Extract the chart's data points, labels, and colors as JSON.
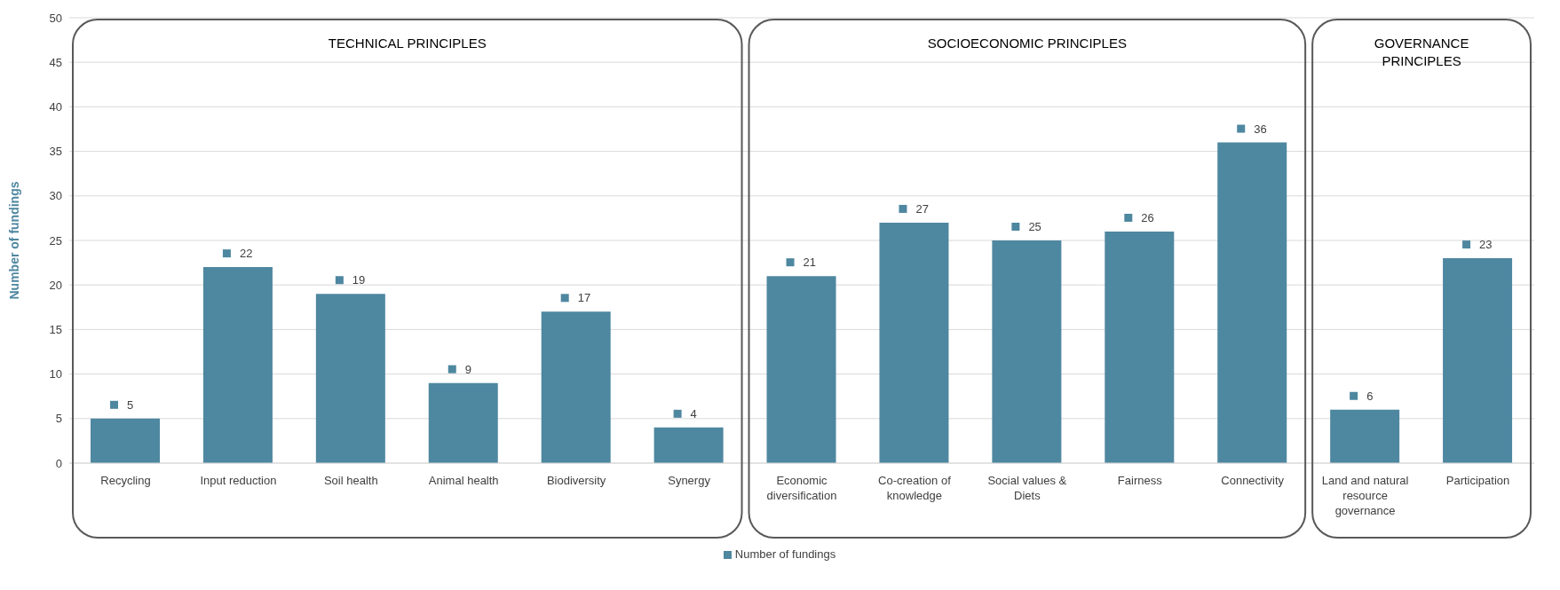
{
  "chart_data": {
    "type": "bar",
    "ylabel": "Number of fundings",
    "categories": [
      "Recycling",
      "Input reduction",
      "Soil health",
      "Animal health",
      "Biodiversity",
      "Synergy",
      "Economic diversification",
      "Co-creation of knowledge",
      "Social values & Diets",
      "Fairness",
      "Connectivity",
      "Land and natural resource governance",
      "Participation"
    ],
    "series": [
      {
        "name": "Number of fundings",
        "color": "#4e87a0",
        "values": [
          5,
          22,
          19,
          9,
          17,
          4,
          21,
          27,
          25,
          26,
          36,
          6,
          23
        ]
      }
    ],
    "ylim": [
      0,
      50
    ],
    "yticks": [
      0,
      5,
      10,
      15,
      20,
      25,
      30,
      35,
      40,
      45,
      50
    ],
    "grid": "y",
    "legend": "bottom",
    "data_labels": true,
    "annotations": [
      "TECHNICAL PRINCIPLES",
      "SOCIOECONOMIC PRINCIPLES",
      "GOVERNANCE PRINCIPLES"
    ]
  }
}
